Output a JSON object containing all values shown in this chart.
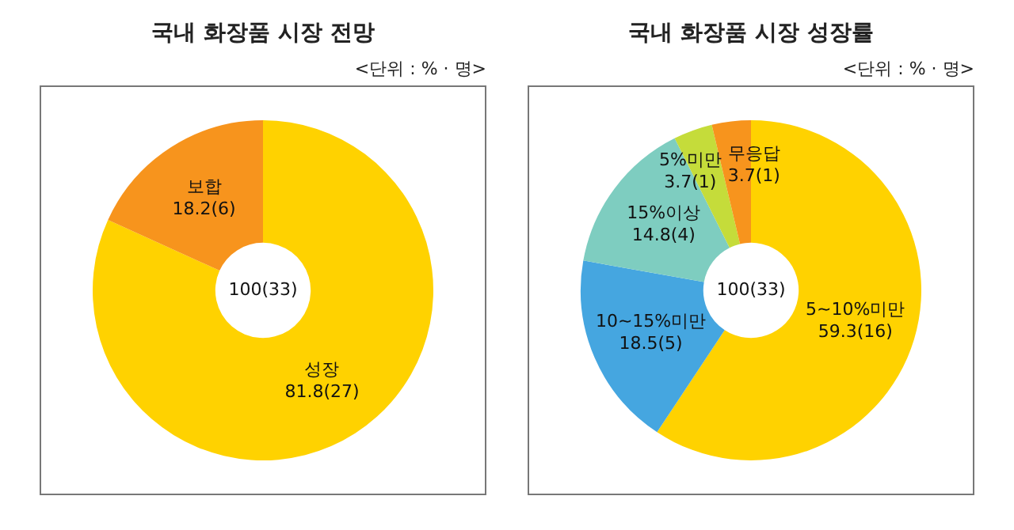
{
  "chart_data": [
    {
      "type": "donut",
      "title": "국내 화장품 시장 전망",
      "categories": [
        "성장",
        "보합"
      ],
      "values": [
        81.8,
        18.2
      ],
      "colors": [
        "#ffd200",
        "#f7941d"
      ],
      "value_labels": [
        "81.8(27)",
        "18.2(6)"
      ],
      "annotations": [
        "<단위 : % · 명>",
        "100(33)"
      ]
    },
    {
      "type": "donut",
      "title": "국내 화장품 시장 성장률",
      "categories": [
        "5~10%미만",
        "10~15%미만",
        "15%이상",
        "5%미만",
        "무응답"
      ],
      "values": [
        59.3,
        18.5,
        14.8,
        3.7,
        3.7
      ],
      "colors": [
        "#ffd200",
        "#45a6e0",
        "#7ecdc0",
        "#c5dc3a",
        "#f7941d"
      ],
      "value_labels": [
        "59.3(16)",
        "18.5(5)",
        "14.8(4)",
        "3.7(1)",
        "3.7(1)"
      ],
      "annotations": [
        "<단위 : % · 명>",
        "100(33)"
      ]
    }
  ]
}
